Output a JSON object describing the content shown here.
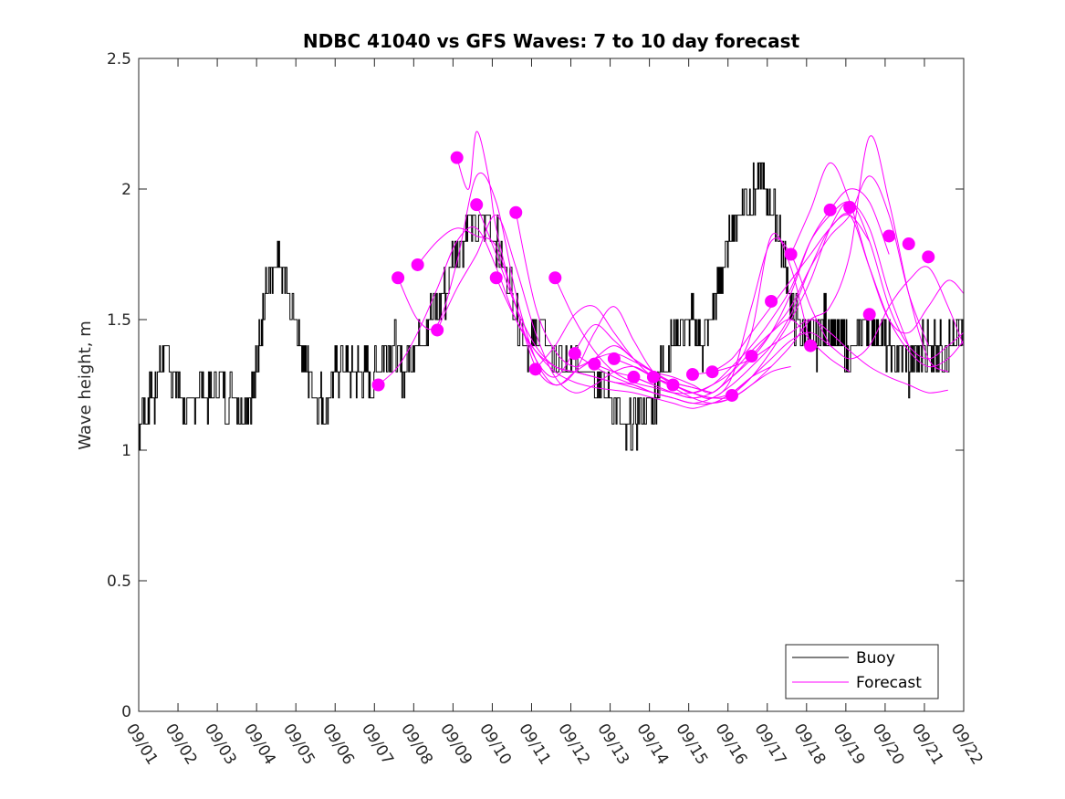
{
  "chart_data": {
    "type": "line",
    "title": "NDBC 41040 vs GFS Waves: 7 to 10 day forecast",
    "xlabel": "",
    "ylabel": "Wave height, m",
    "xlim": [
      0,
      21
    ],
    "ylim": [
      0,
      2.5
    ],
    "x_tick_labels": [
      "09/01",
      "09/02",
      "09/03",
      "09/04",
      "09/05",
      "09/06",
      "09/07",
      "09/08",
      "09/09",
      "09/10",
      "09/11",
      "09/12",
      "09/13",
      "09/14",
      "09/15",
      "09/16",
      "09/17",
      "09/18",
      "09/19",
      "09/20",
      "09/21",
      "09/22"
    ],
    "y_ticks": [
      0,
      0.5,
      1,
      1.5,
      2,
      2.5
    ],
    "y_tick_labels": [
      "0",
      "0.5",
      "1",
      "1.5",
      "2",
      "2.5"
    ],
    "legend": {
      "position": "bottom-right",
      "entries": [
        {
          "label": "Buoy",
          "color": "#000000"
        },
        {
          "label": "Forecast",
          "color": "#ff00ff"
        }
      ]
    },
    "colors": {
      "buoy": "#000000",
      "forecast": "#ff00ff"
    },
    "buoy": {
      "name": "Buoy",
      "x": [
        0.0,
        0.1,
        0.2,
        0.3,
        0.4,
        0.55,
        0.7,
        0.85,
        1.0,
        1.2,
        1.4,
        1.6,
        1.8,
        2.0,
        2.2,
        2.4,
        2.6,
        2.8,
        3.0,
        3.1,
        3.25,
        3.4,
        3.55,
        3.7,
        3.85,
        4.0,
        4.15,
        4.3,
        4.45,
        4.6,
        4.75,
        4.9,
        5.05,
        5.2,
        5.35,
        5.5,
        5.65,
        5.8,
        5.95,
        6.1,
        6.25,
        6.4,
        6.55,
        6.7,
        6.85,
        7.0,
        7.2,
        7.4,
        7.6,
        7.8,
        8.0,
        8.2,
        8.4,
        8.6,
        8.8,
        9.0,
        9.2,
        9.4,
        9.6,
        9.8,
        10.0,
        10.2,
        10.4,
        10.6,
        10.8,
        11.0,
        11.2,
        11.4,
        11.6,
        11.8,
        12.0,
        12.2,
        12.4,
        12.6,
        12.8,
        13.0,
        13.15,
        13.3,
        13.45,
        13.6,
        13.75,
        13.9,
        14.05,
        14.2,
        14.35,
        14.5,
        14.65,
        14.8,
        14.95,
        15.1,
        15.25,
        15.4,
        15.55,
        15.7,
        15.85,
        16.0,
        16.15,
        16.3,
        16.45,
        16.6,
        16.75,
        16.9,
        17.05,
        17.2,
        17.35,
        17.5,
        17.65,
        17.8,
        17.95,
        18.1,
        18.25,
        18.4,
        18.55,
        18.7,
        18.85,
        19.0,
        19.2,
        19.4,
        19.6,
        19.8,
        20.0,
        20.2,
        20.4,
        20.6,
        20.8,
        21.0
      ],
      "values": [
        1.05,
        1.2,
        1.1,
        1.25,
        1.2,
        1.35,
        1.4,
        1.3,
        1.25,
        1.15,
        1.2,
        1.25,
        1.2,
        1.3,
        1.2,
        1.25,
        1.15,
        1.2,
        1.3,
        1.5,
        1.6,
        1.65,
        1.7,
        1.65,
        1.55,
        1.5,
        1.4,
        1.3,
        1.25,
        1.2,
        1.15,
        1.25,
        1.3,
        1.35,
        1.3,
        1.3,
        1.3,
        1.3,
        1.25,
        1.35,
        1.35,
        1.4,
        1.4,
        1.3,
        1.35,
        1.4,
        1.45,
        1.5,
        1.55,
        1.6,
        1.75,
        1.8,
        1.9,
        1.85,
        1.9,
        1.85,
        1.75,
        1.65,
        1.55,
        1.45,
        1.4,
        1.45,
        1.4,
        1.35,
        1.3,
        1.3,
        1.35,
        1.35,
        1.3,
        1.25,
        1.2,
        1.15,
        1.05,
        1.1,
        1.15,
        1.2,
        1.2,
        1.3,
        1.35,
        1.4,
        1.45,
        1.5,
        1.5,
        1.45,
        1.4,
        1.45,
        1.55,
        1.65,
        1.75,
        1.85,
        1.9,
        1.95,
        1.95,
        2.0,
        2.05,
        1.95,
        1.9,
        1.85,
        1.7,
        1.55,
        1.5,
        1.45,
        1.45,
        1.4,
        1.45,
        1.5,
        1.45,
        1.4,
        1.4,
        1.35,
        1.4,
        1.45,
        1.5,
        1.45,
        1.45,
        1.4,
        1.35,
        1.35,
        1.3,
        1.35,
        1.4,
        1.4,
        1.4,
        1.4,
        1.4,
        1.4
      ]
    },
    "forecast_series": [
      {
        "name": "Forecast",
        "x": [
          6.1,
          6.6,
          7.1,
          7.6,
          8.1,
          8.6,
          9.1,
          9.6,
          10.1,
          10.6,
          11.1,
          11.6,
          12.1,
          12.6,
          13.1,
          13.6
        ],
        "values": [
          1.25,
          1.32,
          1.45,
          1.62,
          1.8,
          1.85,
          1.7,
          1.5,
          1.38,
          1.32,
          1.3,
          1.28,
          1.26,
          1.24,
          1.22,
          1.2
        ]
      },
      {
        "name": "Forecast",
        "x": [
          6.6,
          7.1,
          7.6,
          8.1,
          8.6,
          9.1,
          9.6,
          10.1,
          10.6,
          11.1,
          11.6,
          12.1,
          12.6,
          13.1,
          13.6,
          14.1
        ],
        "values": [
          1.66,
          1.5,
          1.48,
          1.72,
          2.05,
          1.95,
          1.6,
          1.35,
          1.25,
          1.3,
          1.35,
          1.4,
          1.35,
          1.3,
          1.25,
          1.22
        ]
      },
      {
        "name": "Forecast",
        "x": [
          7.1,
          7.6,
          8.1,
          8.6,
          9.1,
          9.6,
          10.1,
          10.6,
          11.1,
          11.6,
          12.1,
          12.6,
          13.1,
          13.6,
          14.1,
          14.6
        ],
        "values": [
          1.71,
          1.8,
          1.85,
          1.82,
          1.78,
          1.55,
          1.32,
          1.25,
          1.3,
          1.45,
          1.55,
          1.42,
          1.3,
          1.26,
          1.24,
          1.22
        ]
      },
      {
        "name": "Forecast",
        "x": [
          7.6,
          8.1,
          8.6,
          9.1,
          9.6,
          10.1,
          10.6,
          11.1,
          11.6,
          12.1,
          12.6,
          13.1,
          13.6,
          14.1,
          14.6,
          15.1
        ],
        "values": [
          1.46,
          1.62,
          1.75,
          1.9,
          1.7,
          1.45,
          1.28,
          1.22,
          1.25,
          1.3,
          1.32,
          1.28,
          1.25,
          1.22,
          1.2,
          1.2
        ]
      },
      {
        "name": "Forecast",
        "x": [
          8.1,
          8.4,
          8.6,
          8.9,
          9.1,
          9.6,
          10.1,
          10.6,
          11.1,
          11.6,
          12.1,
          12.6,
          13.1,
          13.6,
          14.1,
          14.6
        ],
        "values": [
          2.12,
          2.0,
          2.22,
          2.05,
          1.85,
          1.55,
          1.35,
          1.28,
          1.38,
          1.48,
          1.42,
          1.35,
          1.3,
          1.26,
          1.24,
          1.22
        ]
      },
      {
        "name": "Forecast",
        "x": [
          8.6,
          9.1,
          9.6,
          10.1,
          10.6,
          11.1,
          11.6,
          12.1,
          12.6,
          13.1,
          13.6,
          14.1,
          14.6,
          15.1,
          15.6,
          16.1
        ],
        "values": [
          1.94,
          1.75,
          1.55,
          1.4,
          1.32,
          1.3,
          1.28,
          1.26,
          1.25,
          1.22,
          1.2,
          1.18,
          1.18,
          1.22,
          1.28,
          1.32
        ]
      },
      {
        "name": "Forecast",
        "x": [
          9.1,
          9.6,
          10.1,
          10.6,
          11.1,
          11.6,
          12.1,
          12.6,
          13.1,
          13.6,
          14.1,
          14.6,
          15.1,
          15.6,
          16.1,
          16.6
        ],
        "values": [
          1.66,
          1.5,
          1.38,
          1.3,
          1.26,
          1.24,
          1.23,
          1.22,
          1.2,
          1.18,
          1.16,
          1.18,
          1.2,
          1.25,
          1.3,
          1.32
        ]
      },
      {
        "name": "Forecast",
        "x": [
          9.6,
          10.1,
          10.6,
          11.1,
          11.6,
          12.1,
          12.6,
          13.1,
          13.6,
          14.1,
          14.6,
          15.1,
          15.6,
          16.1,
          16.6,
          17.1
        ],
        "values": [
          1.91,
          1.55,
          1.38,
          1.32,
          1.35,
          1.37,
          1.34,
          1.3,
          1.28,
          1.25,
          1.22,
          1.3,
          1.45,
          1.82,
          1.7,
          1.4
        ]
      },
      {
        "name": "Forecast",
        "x": [
          10.1,
          10.6,
          11.1,
          11.6,
          12.1,
          12.6,
          13.1,
          13.6,
          14.1,
          14.6,
          15.1,
          15.6,
          16.1,
          16.6,
          17.1,
          17.6
        ],
        "values": [
          1.31,
          1.4,
          1.52,
          1.55,
          1.45,
          1.35,
          1.28,
          1.25,
          1.22,
          1.2,
          1.28,
          1.55,
          1.8,
          1.75,
          1.55,
          1.4
        ]
      },
      {
        "name": "Forecast",
        "x": [
          10.6,
          11.1,
          11.6,
          12.1,
          12.6,
          13.1,
          13.6,
          14.1,
          14.6,
          15.1,
          15.6,
          16.1,
          16.6,
          17.1,
          17.6,
          18.1
        ],
        "values": [
          1.66,
          1.5,
          1.38,
          1.3,
          1.26,
          1.24,
          1.22,
          1.22,
          1.25,
          1.3,
          1.38,
          1.45,
          1.5,
          1.42,
          1.35,
          1.3
        ]
      },
      {
        "name": "Forecast",
        "x": [
          11.1,
          11.6,
          12.1,
          12.6,
          13.1,
          13.6,
          14.1,
          14.6,
          15.1,
          15.6,
          16.1,
          16.6,
          17.1,
          17.6,
          18.1,
          18.6
        ],
        "values": [
          1.37,
          1.32,
          1.28,
          1.25,
          1.22,
          1.2,
          1.18,
          1.2,
          1.25,
          1.32,
          1.4,
          1.52,
          1.7,
          1.85,
          1.9,
          1.8
        ]
      },
      {
        "name": "Forecast",
        "x": [
          11.6,
          12.1,
          12.6,
          13.1,
          13.6,
          14.1,
          14.6,
          15.1,
          15.6,
          16.1,
          16.6,
          17.1,
          17.6,
          18.1,
          18.6,
          19.1
        ],
        "values": [
          1.33,
          1.3,
          1.28,
          1.25,
          1.22,
          1.2,
          1.22,
          1.28,
          1.35,
          1.45,
          1.6,
          1.8,
          1.92,
          2.0,
          1.95,
          1.75
        ]
      },
      {
        "name": "Forecast",
        "x": [
          12.1,
          12.6,
          13.1,
          13.6,
          14.1,
          14.6,
          15.1,
          15.6,
          16.1,
          16.6,
          17.1,
          17.6,
          18.1,
          18.6,
          19.1,
          19.6
        ],
        "values": [
          1.35,
          1.32,
          1.28,
          1.25,
          1.22,
          1.25,
          1.32,
          1.4,
          1.5,
          1.62,
          1.8,
          1.9,
          1.95,
          1.85,
          1.6,
          1.4
        ]
      },
      {
        "name": "Forecast",
        "x": [
          12.6,
          13.1,
          13.6,
          14.1,
          14.6,
          15.1,
          15.6,
          16.1,
          16.6,
          17.1,
          17.6,
          18.1,
          18.6,
          19.1,
          19.6,
          20.1
        ],
        "values": [
          1.28,
          1.25,
          1.22,
          1.2,
          1.22,
          1.28,
          1.36,
          1.45,
          1.55,
          1.7,
          1.82,
          1.9,
          2.05,
          1.9,
          1.6,
          1.4
        ]
      },
      {
        "name": "Forecast",
        "x": [
          13.1,
          13.6,
          14.1,
          14.6,
          15.1,
          15.6,
          16.1,
          16.6,
          17.1,
          17.6,
          18.1,
          18.6,
          19.1,
          19.6,
          20.1,
          20.6
        ],
        "values": [
          1.28,
          1.24,
          1.2,
          1.18,
          1.2,
          1.25,
          1.32,
          1.4,
          1.5,
          1.55,
          1.75,
          2.2,
          1.95,
          1.6,
          1.35,
          1.3
        ]
      },
      {
        "name": "Forecast",
        "x": [
          13.6,
          14.1,
          14.6,
          15.1,
          15.6,
          16.1,
          16.6,
          17.1,
          17.6,
          18.1,
          18.6,
          19.1,
          19.6,
          20.1,
          20.6,
          21.0
        ],
        "values": [
          1.25,
          1.22,
          1.2,
          1.22,
          1.28,
          1.35,
          1.42,
          1.45,
          1.4,
          1.35,
          1.4,
          1.55,
          1.65,
          1.7,
          1.55,
          1.4
        ]
      },
      {
        "name": "Forecast",
        "x": [
          14.1,
          14.6,
          15.1,
          15.6,
          16.1,
          16.6,
          17.1,
          17.6,
          18.1,
          18.6,
          19.1,
          19.6,
          20.1,
          20.6
        ],
        "values": [
          1.29,
          1.3,
          1.32,
          1.35,
          1.4,
          1.45,
          1.5,
          1.45,
          1.38,
          1.32,
          1.28,
          1.25,
          1.22,
          1.23
        ]
      },
      {
        "name": "Forecast",
        "x": [
          14.6,
          15.1,
          15.6,
          16.1,
          16.6,
          17.1,
          17.6,
          18.1,
          18.6,
          19.1,
          19.6,
          20.1,
          20.6,
          21.0
        ],
        "values": [
          1.3,
          1.35,
          1.45,
          1.55,
          1.65,
          1.75,
          1.85,
          1.9,
          1.7,
          1.5,
          1.38,
          1.32,
          1.35,
          1.42
        ]
      },
      {
        "name": "Forecast",
        "x": [
          15.1,
          15.6,
          16.1,
          16.6,
          17.1,
          17.6,
          18.1,
          18.6,
          19.1,
          19.6,
          20.1,
          20.6,
          21.0
        ],
        "values": [
          1.21,
          1.28,
          1.38,
          1.5,
          1.65,
          1.85,
          1.95,
          1.8,
          1.55,
          1.4,
          1.35,
          1.4,
          1.45
        ]
      },
      {
        "name": "Forecast",
        "x": [
          16.6,
          17.1,
          17.6,
          18.1,
          18.6,
          19.1,
          19.6,
          20.1,
          20.6,
          21.0
        ],
        "values": [
          1.75,
          1.92,
          2.1,
          1.95,
          1.7,
          1.5,
          1.45,
          1.55,
          1.65,
          1.6
        ]
      }
    ],
    "forecast_markers": {
      "name": "Forecast",
      "x": [
        6.1,
        6.6,
        7.1,
        7.6,
        8.1,
        8.6,
        9.1,
        9.6,
        10.1,
        10.6,
        11.1,
        11.6,
        12.1,
        12.6,
        13.1,
        13.6,
        14.1,
        14.6,
        15.1,
        15.6,
        16.1,
        16.6,
        17.1,
        17.6,
        18.1,
        18.6,
        19.1,
        19.6,
        20.1
      ],
      "values": [
        1.25,
        1.66,
        1.71,
        1.46,
        2.12,
        1.94,
        1.66,
        1.91,
        1.31,
        1.66,
        1.37,
        1.33,
        1.35,
        1.28,
        1.28,
        1.25,
        1.29,
        1.3,
        1.21,
        1.36,
        1.57,
        1.75,
        1.4,
        1.92,
        1.93,
        1.52,
        1.82,
        1.79,
        1.74
      ]
    }
  }
}
